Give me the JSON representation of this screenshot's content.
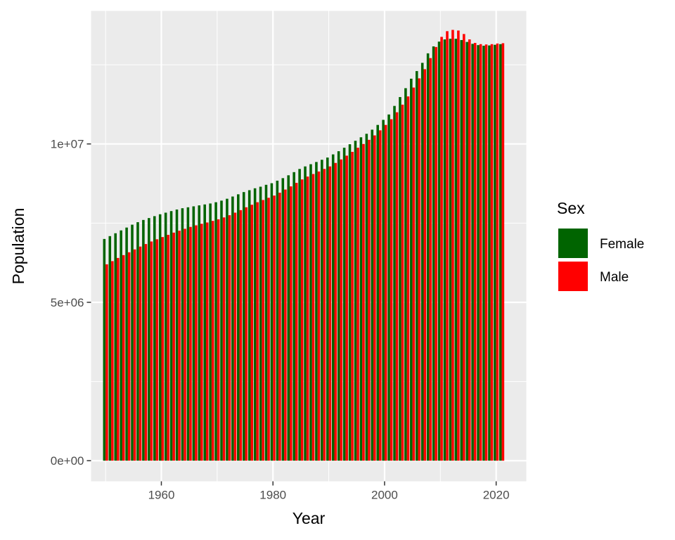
{
  "chart_data": {
    "type": "bar",
    "bar_mode": "dodge",
    "title": "",
    "xlabel": "Year",
    "ylabel": "Population",
    "x_ticks": [
      1960,
      1980,
      2000,
      2020
    ],
    "x_tick_labels": [
      "1960",
      "1980",
      "2000",
      "2020"
    ],
    "y_ticks": [
      0,
      5000000,
      10000000
    ],
    "y_tick_labels": [
      "0e+00",
      "5e+06",
      "1e+07"
    ],
    "xlim": [
      1947.4,
      2025.4
    ],
    "ylim": [
      -650000,
      14200000
    ],
    "grid": true,
    "legend": {
      "title": "Sex",
      "position": "right"
    },
    "x": [
      1950,
      1951,
      1952,
      1953,
      1954,
      1955,
      1956,
      1957,
      1958,
      1959,
      1960,
      1961,
      1962,
      1963,
      1964,
      1965,
      1966,
      1967,
      1968,
      1969,
      1970,
      1971,
      1972,
      1973,
      1974,
      1975,
      1976,
      1977,
      1978,
      1979,
      1980,
      1981,
      1982,
      1983,
      1984,
      1985,
      1986,
      1987,
      1988,
      1989,
      1990,
      1991,
      1992,
      1993,
      1994,
      1995,
      1996,
      1997,
      1998,
      1999,
      2000,
      2001,
      2002,
      2003,
      2004,
      2005,
      2006,
      2007,
      2008,
      2009,
      2010,
      2011,
      2012,
      2013,
      2014,
      2015,
      2016,
      2017,
      2018,
      2019,
      2020,
      2021
    ],
    "series": [
      {
        "name": "Female",
        "color": "#006400",
        "values": [
          7000000,
          7090000,
          7180000,
          7270000,
          7360000,
          7450000,
          7530000,
          7600000,
          7660000,
          7720000,
          7780000,
          7830000,
          7880000,
          7930000,
          7970000,
          8000000,
          8030000,
          8060000,
          8090000,
          8120000,
          8160000,
          8210000,
          8270000,
          8340000,
          8410000,
          8480000,
          8540000,
          8600000,
          8650000,
          8710000,
          8760000,
          8840000,
          8920000,
          9010000,
          9110000,
          9210000,
          9290000,
          9360000,
          9430000,
          9500000,
          9570000,
          9670000,
          9770000,
          9880000,
          9990000,
          10100000,
          10210000,
          10320000,
          10450000,
          10600000,
          10760000,
          10930000,
          11200000,
          11480000,
          11760000,
          12060000,
          12300000,
          12560000,
          12860000,
          13080000,
          13230000,
          13300000,
          13320000,
          13320000,
          13280000,
          13220000,
          13160000,
          13120000,
          13100000,
          13110000,
          13130000,
          13150000
        ]
      },
      {
        "name": "Male",
        "color": "#ff0000",
        "values": [
          6200000,
          6300000,
          6400000,
          6490000,
          6580000,
          6670000,
          6760000,
          6840000,
          6920000,
          6990000,
          7060000,
          7130000,
          7200000,
          7260000,
          7320000,
          7380000,
          7430000,
          7480000,
          7520000,
          7570000,
          7620000,
          7680000,
          7750000,
          7830000,
          7910000,
          8000000,
          8080000,
          8160000,
          8230000,
          8300000,
          8370000,
          8460000,
          8560000,
          8660000,
          8770000,
          8880000,
          8970000,
          9050000,
          9130000,
          9210000,
          9290000,
          9400000,
          9510000,
          9630000,
          9750000,
          9880000,
          10000000,
          10130000,
          10270000,
          10430000,
          10600000,
          10780000,
          11000000,
          11240000,
          11500000,
          11780000,
          12070000,
          12360000,
          12710000,
          13060000,
          13380000,
          13560000,
          13600000,
          13580000,
          13470000,
          13300000,
          13190000,
          13150000,
          13140000,
          13150000,
          13170000,
          13180000
        ]
      }
    ]
  }
}
